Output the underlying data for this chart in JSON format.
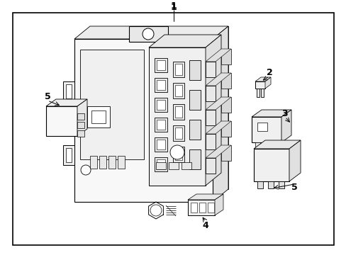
{
  "bg_color": "#ffffff",
  "line_color": "#000000",
  "text_color": "#000000",
  "fig_width": 4.89,
  "fig_height": 3.6,
  "dpi": 100,
  "label_fontsize": 9,
  "border_lw": 1.0,
  "component_lw": 0.7
}
